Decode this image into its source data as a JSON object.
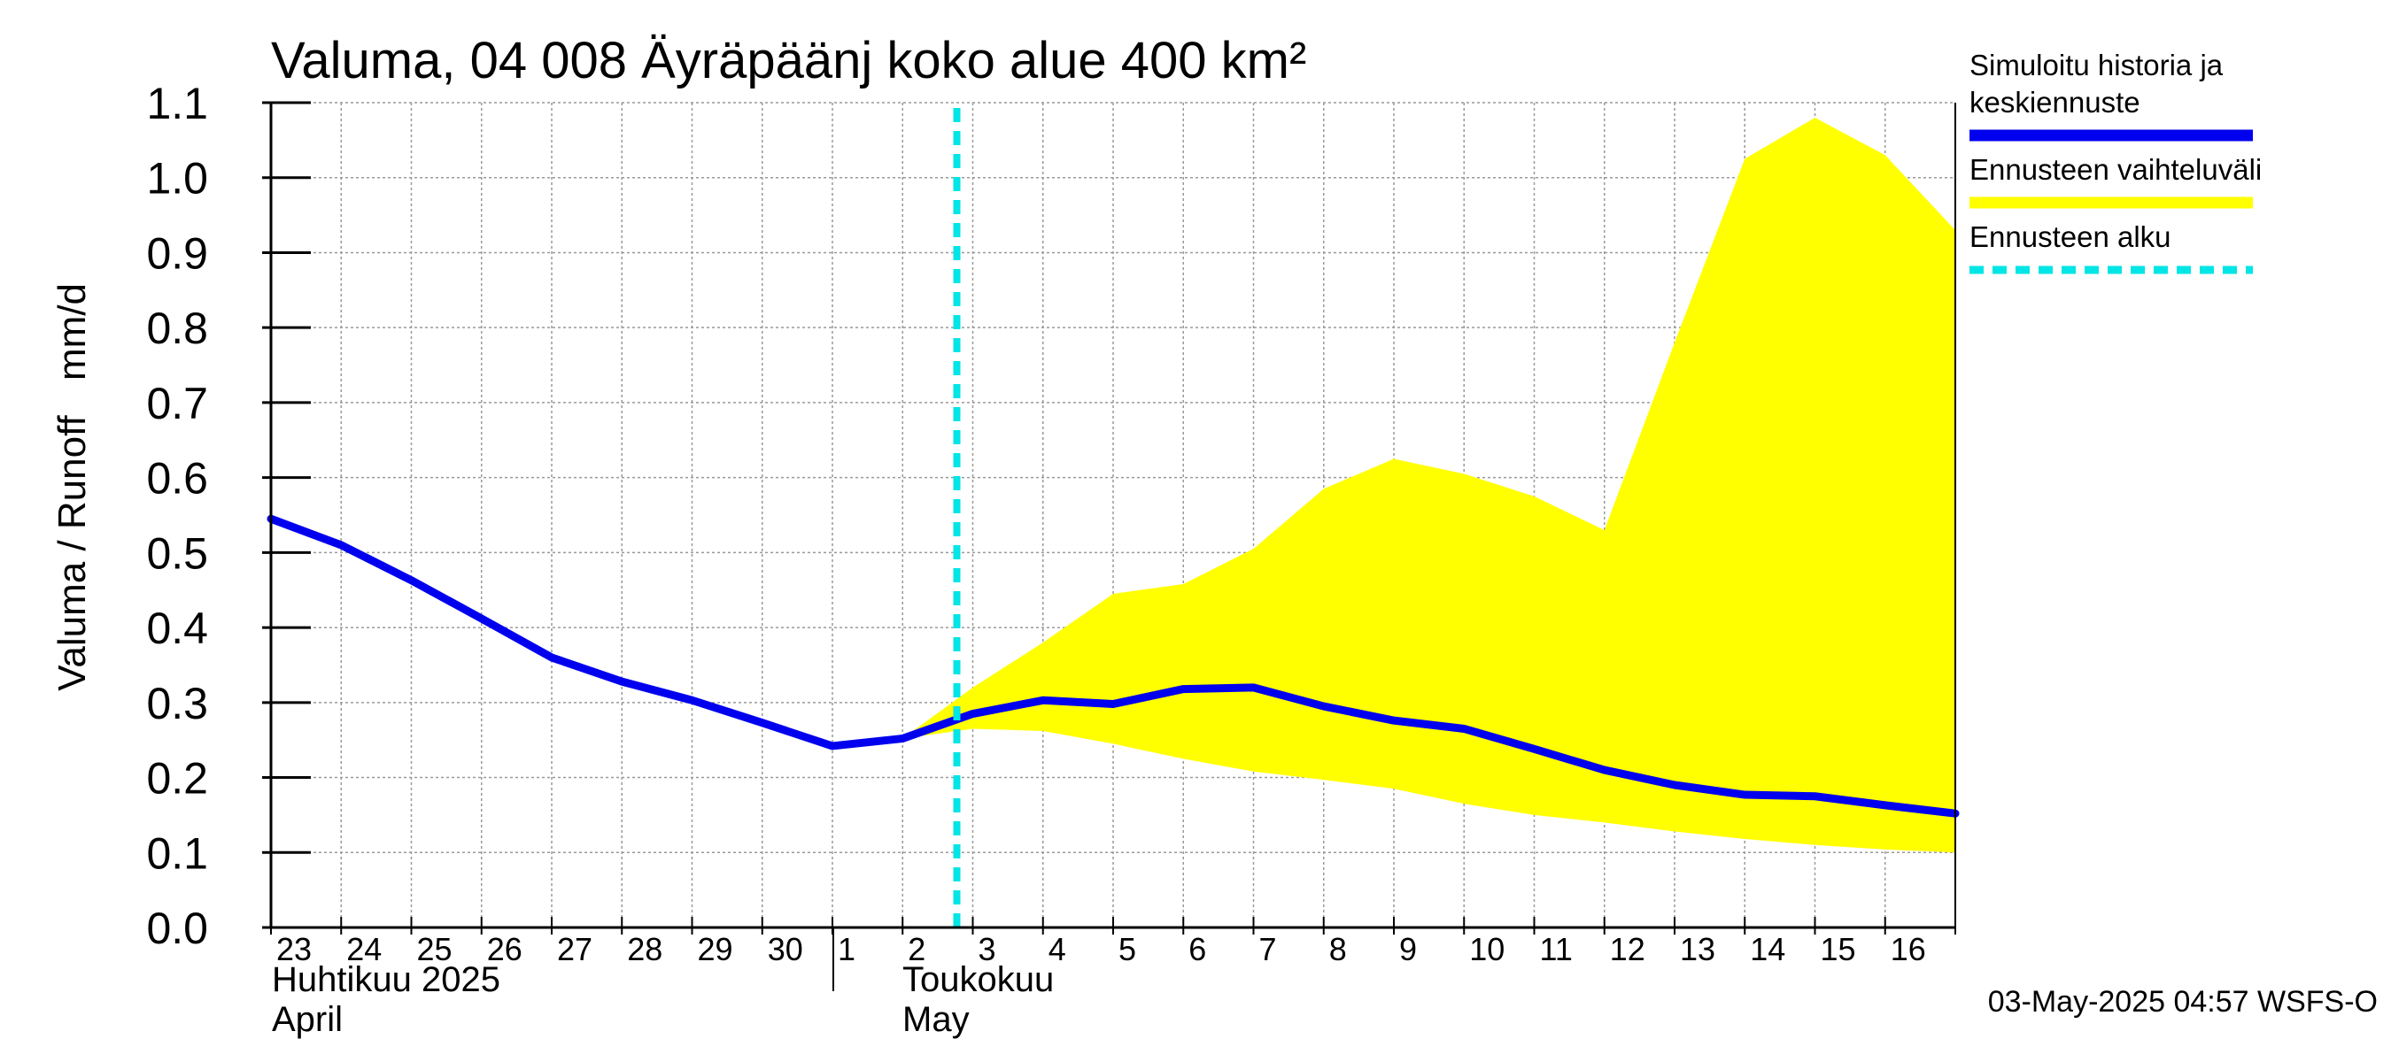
{
  "chart_data": {
    "type": "line",
    "title": "Valuma, 04 008 Äyräpäänj koko alue 400 km²",
    "ylabel_left": "Valuma / Runoff",
    "ylabel_right": "mm/d",
    "ylim": [
      0.0,
      1.1
    ],
    "y_ticks": [
      "0.0",
      "0.1",
      "0.2",
      "0.3",
      "0.4",
      "0.5",
      "0.6",
      "0.7",
      "0.8",
      "0.9",
      "1.0",
      "1.1"
    ],
    "x_ticks": [
      "23",
      "24",
      "25",
      "26",
      "27",
      "28",
      "29",
      "30",
      "1",
      "2",
      "3",
      "4",
      "5",
      "6",
      "7",
      "8",
      "9",
      "10",
      "11",
      "12",
      "13",
      "14",
      "15",
      "16"
    ],
    "month_labels": {
      "april_fi": "Huhtikuu  2025",
      "april_en": "April",
      "may_fi": "Toukokuu",
      "may_en": "May"
    },
    "grid": true,
    "legend_position": "right",
    "series": [
      {
        "name": "Simuloitu historia ja keskiennuste",
        "color": "#0000ee",
        "x": [
          "2025-04-23",
          "2025-04-24",
          "2025-04-25",
          "2025-04-26",
          "2025-04-27",
          "2025-04-28",
          "2025-04-29",
          "2025-04-30",
          "2025-05-01",
          "2025-05-02",
          "2025-05-03",
          "2025-05-04",
          "2025-05-05",
          "2025-05-06",
          "2025-05-07",
          "2025-05-08",
          "2025-05-09",
          "2025-05-10",
          "2025-05-11",
          "2025-05-12",
          "2025-05-13",
          "2025-05-14",
          "2025-05-15",
          "2025-05-16",
          "2025-05-17"
        ],
        "values": [
          0.545,
          0.51,
          0.463,
          0.412,
          0.36,
          0.328,
          0.303,
          0.273,
          0.242,
          0.252,
          0.285,
          0.303,
          0.298,
          0.318,
          0.32,
          0.295,
          0.276,
          0.265,
          0.238,
          0.21,
          0.19,
          0.177,
          0.175,
          0.163,
          0.152
        ]
      },
      {
        "name": "Ennusteen vaihteluväli",
        "color": "#ffff00",
        "x": [
          "2025-05-02",
          "2025-05-03",
          "2025-05-04",
          "2025-05-05",
          "2025-05-06",
          "2025-05-07",
          "2025-05-08",
          "2025-05-09",
          "2025-05-10",
          "2025-05-11",
          "2025-05-12",
          "2025-05-13",
          "2025-05-14",
          "2025-05-15",
          "2025-05-16",
          "2025-05-17"
        ],
        "upper": [
          0.252,
          0.32,
          0.38,
          0.445,
          0.458,
          0.505,
          0.585,
          0.625,
          0.605,
          0.575,
          0.53,
          0.78,
          1.025,
          1.08,
          1.03,
          0.93
        ],
        "lower": [
          0.252,
          0.265,
          0.262,
          0.245,
          0.225,
          0.208,
          0.197,
          0.185,
          0.165,
          0.15,
          0.14,
          0.128,
          0.118,
          0.11,
          0.104,
          0.1
        ]
      },
      {
        "name": "Ennusteen alku",
        "color": "#00e5e5",
        "x": "2025-05-03"
      }
    ]
  },
  "legend": {
    "items": [
      {
        "label_lines": [
          "Simuloitu historia ja",
          "keskiennuste"
        ],
        "color": "#0000ee",
        "style": "solid"
      },
      {
        "label_lines": [
          "Ennusteen vaihteluväli"
        ],
        "color": "#ffff00",
        "style": "solid"
      },
      {
        "label_lines": [
          "Ennusteen alku"
        ],
        "color": "#00e5e5",
        "style": "dashed"
      }
    ]
  },
  "footer": "03-May-2025 04:57 WSFS-O"
}
